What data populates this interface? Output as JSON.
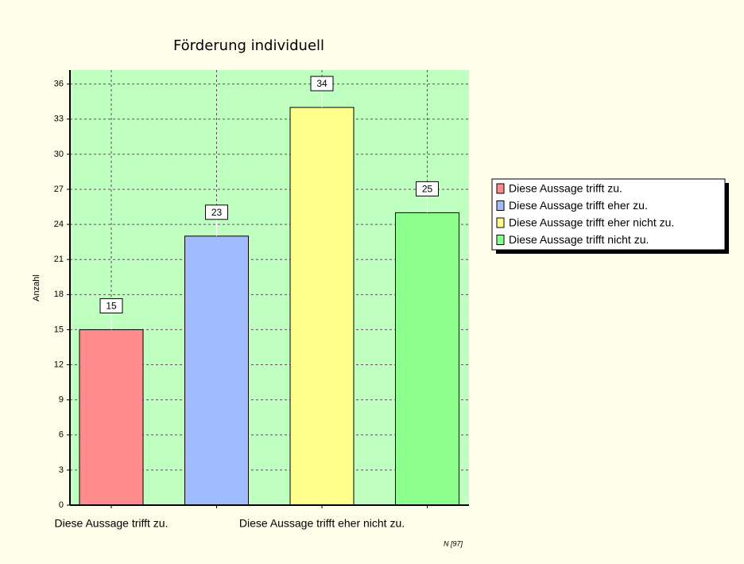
{
  "chart_data": {
    "type": "bar",
    "title": "Förderung individuell",
    "categories": [
      "Diese Aussage trifft zu.",
      null,
      "Diese Aussage trifft eher nicht zu.",
      null
    ],
    "values": [
      15,
      23,
      34,
      25
    ],
    "colors": [
      "#ff8c8c",
      "#a0bcff",
      "#ffff8c",
      "#8cff8c"
    ],
    "legend": [
      "Diese Aussage trifft zu.",
      "Diese Aussage trifft eher zu.",
      "Diese Aussage trifft eher nicht zu.",
      "Diese Aussage trifft nicht zu."
    ],
    "y_label": "Anzahl",
    "note": "N [97]",
    "ylim": [
      0,
      37.2
    ],
    "yticks": [
      0,
      3,
      6,
      9,
      12,
      15,
      18,
      21,
      24,
      27,
      30,
      33,
      36
    ],
    "grid": true
  }
}
